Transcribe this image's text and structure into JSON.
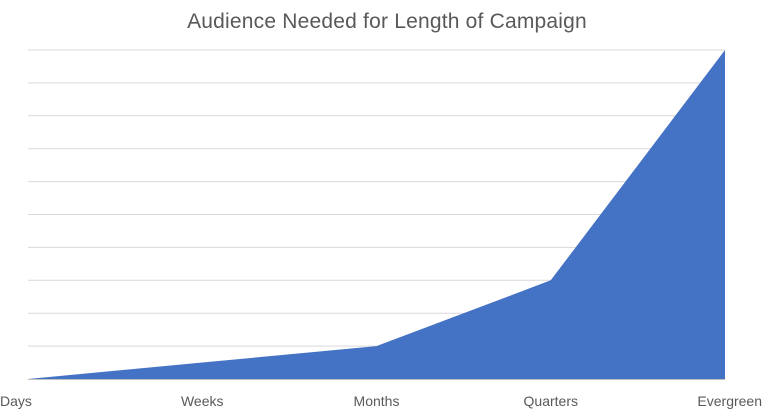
{
  "chart_data": {
    "type": "area",
    "title": "Audience Needed for Length of Campaign",
    "xlabel": "",
    "ylabel": "",
    "categories": [
      "Days",
      "Weeks",
      "Months",
      "Quarters",
      "Evergreen"
    ],
    "series": [
      {
        "values": [
          0,
          0.5,
          1,
          3,
          10
        ]
      }
    ],
    "ylim": [
      0,
      10
    ],
    "grid": true,
    "gridline_count": 10,
    "legend": "none",
    "y_tick_labels_visible": false,
    "colors": {
      "area": "#4472C4",
      "grid": "#D9D9D9",
      "axis": "#BFBFBF",
      "text": "#595959"
    }
  }
}
